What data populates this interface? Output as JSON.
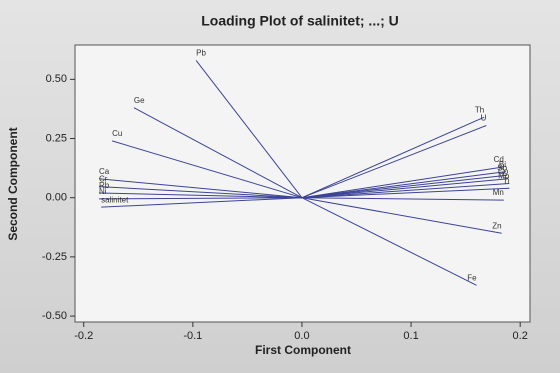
{
  "chart_data": {
    "type": "loading",
    "title": "Loading Plot of salinitet; ...; U",
    "x_label": "First Component",
    "y_label": "Second Component",
    "color": "#3c4398",
    "xlim": [
      -0.208,
      0.209
    ],
    "ylim": [
      -0.525,
      0.645
    ],
    "xticks": [
      -0.2,
      -0.1,
      {
        "value": 0,
        "label": "0.0"
      },
      0.1,
      0.2
    ],
    "yticks": [
      {
        "value": -0.5,
        "label": "-0.50"
      },
      -0.25,
      {
        "value": 0,
        "label": "0.00"
      },
      0.25,
      {
        "value": 0.5,
        "label": "0.50"
      }
    ],
    "points": [
      {
        "label": "Pb",
        "x": -0.097,
        "y": 0.58
      },
      {
        "label": "Ge",
        "x": -0.154,
        "y": 0.38
      },
      {
        "label": "Cu",
        "x": -0.174,
        "y": 0.24
      },
      {
        "label": "Ca",
        "x": -0.186,
        "y": 0.08
      },
      {
        "label": "Cr",
        "x": -0.186,
        "y": 0.047
      },
      {
        "label": "Rb",
        "x": -0.186,
        "y": 0.02
      },
      {
        "label": "Ni",
        "x": -0.186,
        "y": -0.005
      },
      {
        "label": "salinitet",
        "x": -0.184,
        "y": -0.04
      },
      {
        "label": "Th",
        "x": 0.167,
        "y": 0.34
      },
      {
        "label": "U",
        "x": 0.169,
        "y": 0.305
      },
      {
        "label": "Cd",
        "x": 0.185,
        "y": 0.13
      },
      {
        "label": "Bi",
        "x": 0.187,
        "y": 0.11
      },
      {
        "label": "Sb",
        "x": 0.188,
        "y": 0.095
      },
      {
        "label": "Co",
        "x": 0.189,
        "y": 0.08
      },
      {
        "label": "Mo",
        "x": 0.19,
        "y": 0.06
      },
      {
        "label": "Ti",
        "x": 0.19,
        "y": 0.04
      },
      {
        "label": "Mn",
        "x": 0.185,
        "y": -0.01
      },
      {
        "label": "Zn",
        "x": 0.183,
        "y": -0.15
      },
      {
        "label": "Fe",
        "x": 0.16,
        "y": -0.37
      }
    ]
  }
}
